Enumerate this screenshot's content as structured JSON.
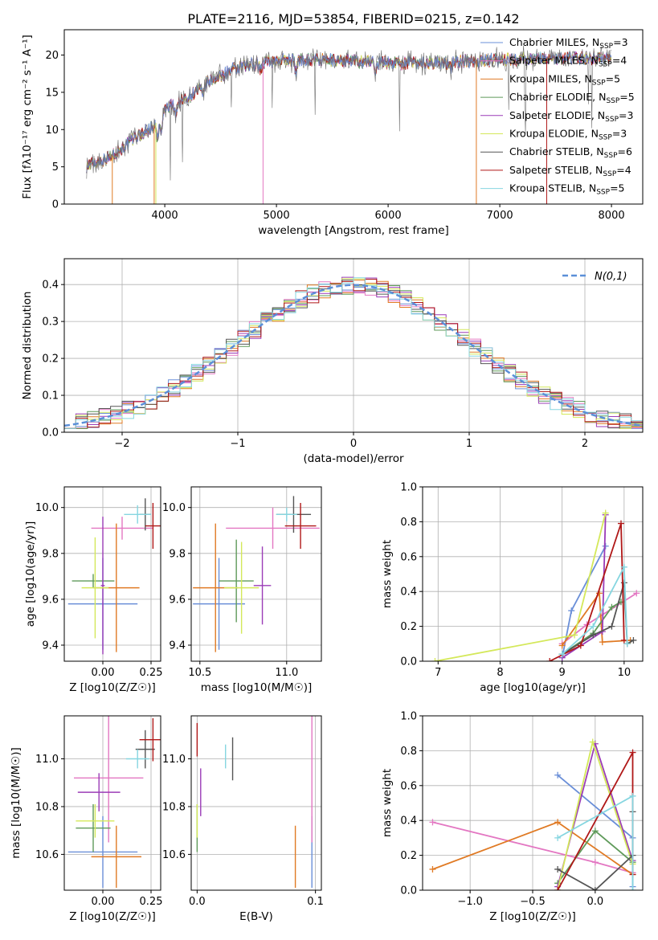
{
  "figure": {
    "title": "PLATE=2116, MJD=53854, FIBERID=0215, z=0.142"
  },
  "legend_models": [
    {
      "label": "Chabrier MILES, N",
      "sub": "SSP",
      "tail": "=3",
      "color": "#6a8fd8"
    },
    {
      "label": "Salpeter MILES, N",
      "sub": "SSP",
      "tail": "=4",
      "color": "#e377c2"
    },
    {
      "label": "Kroupa MILES, N",
      "sub": "SSP",
      "tail": "=5",
      "color": "#e07a24"
    },
    {
      "label": "Chabrier ELODIE, N",
      "sub": "SSP",
      "tail": "=5",
      "color": "#5f9a5a"
    },
    {
      "label": "Salpeter ELODIE, N",
      "sub": "SSP",
      "tail": "=3",
      "color": "#9b3cb7"
    },
    {
      "label": "Kroupa ELODIE, N",
      "sub": "SSP",
      "tail": "=3",
      "color": "#d4e85a"
    },
    {
      "label": "Chabrier STELIB, N",
      "sub": "SSP",
      "tail": "=6",
      "color": "#555555"
    },
    {
      "label": "Salpeter STELIB, N",
      "sub": "SSP",
      "tail": "=4",
      "color": "#b01818"
    },
    {
      "label": "Kroupa STELIB, N",
      "sub": "SSP",
      "tail": "=5",
      "color": "#86d6e0"
    }
  ],
  "chart_data": [
    {
      "id": "spectrum",
      "type": "line",
      "xlabel": "wavelength [Angstrom, rest frame]",
      "ylabel": "Flux [fλ10⁻¹⁷ erg cm⁻² s⁻¹ A⁻¹]",
      "xlim": [
        3100,
        8280
      ],
      "ylim": [
        0,
        23.4
      ],
      "xticks": [
        4000,
        5000,
        6000,
        7000,
        8000
      ],
      "yticks": [
        0,
        5,
        10,
        15,
        20
      ],
      "continuum": {
        "x": [
          3300,
          3500,
          3700,
          3900,
          3950,
          4000,
          4200,
          4400,
          4600,
          4800,
          5000,
          5200,
          5500,
          6000,
          6500,
          7000,
          7500,
          8000
        ],
        "y": [
          5.2,
          6.2,
          8.5,
          10.5,
          11.5,
          12.8,
          14.2,
          16.5,
          18.0,
          18.8,
          19.3,
          19.4,
          19.3,
          19.0,
          19.0,
          19.4,
          19.6,
          19.6
        ]
      },
      "xrange": [
        3300,
        8000
      ]
    },
    {
      "id": "residuals",
      "type": "line",
      "xlabel": "(data-model)/error",
      "ylabel": "Normed distribution",
      "legend": "N(0,1)",
      "xlim": [
        -2.5,
        2.5
      ],
      "ylim": [
        0,
        0.47
      ],
      "xticks": [
        -2,
        -1,
        0,
        1,
        2
      ],
      "yticks": [
        0.0,
        0.1,
        0.2,
        0.3,
        0.4
      ]
    },
    {
      "id": "age_vs_Z",
      "type": "scatter",
      "xlabel": "Z [log10(Z/Z☉)]",
      "ylabel": "age  [log10(age/yr)]",
      "xlim": [
        -0.2,
        0.3
      ],
      "ylim": [
        9.33,
        10.09
      ],
      "xticks": [
        0.0,
        0.25
      ],
      "yticks": [
        9.4,
        9.6,
        9.8,
        10.0
      ],
      "points": [
        {
          "x": 0.0,
          "y": 9.58,
          "xerr": 0.18,
          "yerr": 0.2
        },
        {
          "x": 0.1,
          "y": 9.91,
          "xerr": 0.16,
          "yerr": 0.05
        },
        {
          "x": 0.07,
          "y": 9.65,
          "xerr": 0.12,
          "yerr": 0.28
        },
        {
          "x": -0.05,
          "y": 9.68,
          "xerr": 0.11,
          "yerr": 0.03
        },
        {
          "x": 0.0,
          "y": 9.66,
          "xerr": 0.01,
          "yerr": 0.3
        },
        {
          "x": -0.04,
          "y": 9.65,
          "xerr": 0.07,
          "yerr": 0.22
        },
        {
          "x": 0.22,
          "y": 9.97,
          "xerr": 0.03,
          "yerr": 0.07
        },
        {
          "x": 0.26,
          "y": 9.92,
          "xerr": 0.04,
          "yerr": 0.1
        },
        {
          "x": 0.18,
          "y": 9.97,
          "xerr": 0.07,
          "yerr": 0.04
        }
      ]
    },
    {
      "id": "age_vs_mass",
      "type": "scatter",
      "xlabel": "mass [log10(M/M☉)]",
      "ylabel": "",
      "xlim": [
        10.45,
        11.2
      ],
      "ylim": [
        9.33,
        10.09
      ],
      "xticks": [
        10.5,
        11.0
      ],
      "yticks": [
        9.4,
        9.6,
        9.8,
        10.0
      ],
      "points": [
        {
          "x": 10.61,
          "y": 9.58,
          "xerr": 0.15,
          "yerr": 0.2
        },
        {
          "x": 10.92,
          "y": 9.91,
          "xerr": 0.27,
          "yerr": 0.09
        },
        {
          "x": 10.59,
          "y": 9.65,
          "xerr": 0.13,
          "yerr": 0.28
        },
        {
          "x": 10.71,
          "y": 9.68,
          "xerr": 0.1,
          "yerr": 0.18
        },
        {
          "x": 10.86,
          "y": 9.66,
          "xerr": 0.05,
          "yerr": 0.17
        },
        {
          "x": 10.74,
          "y": 9.65,
          "xerr": 0.1,
          "yerr": 0.2
        },
        {
          "x": 11.04,
          "y": 9.97,
          "xerr": 0.1,
          "yerr": 0.08
        },
        {
          "x": 11.08,
          "y": 9.92,
          "xerr": 0.09,
          "yerr": 0.1
        },
        {
          "x": 11.0,
          "y": 9.97,
          "xerr": 0.06,
          "yerr": 0.03
        }
      ]
    },
    {
      "id": "weight_vs_age",
      "type": "line",
      "xlabel": "age  [log10(age/yr)]",
      "ylabel": "mass weight",
      "xlim": [
        6.75,
        10.3
      ],
      "ylim": [
        0,
        1.0
      ],
      "xticks": [
        7,
        8,
        9,
        10
      ],
      "yticks": [
        0.0,
        0.2,
        0.4,
        0.6,
        0.8,
        1.0
      ],
      "series": [
        {
          "x": [
            9.0,
            9.15,
            9.7
          ],
          "y": [
            0.02,
            0.29,
            0.66
          ]
        },
        {
          "x": [
            9.0,
            9.4,
            10.2
          ],
          "y": [
            0.1,
            0.21,
            0.39
          ]
        },
        {
          "x": [
            9.0,
            9.6,
            9.65,
            10.1
          ],
          "y": [
            0.09,
            0.39,
            0.11,
            0.12
          ]
        },
        {
          "x": [
            9.0,
            9.5,
            9.8,
            9.95
          ],
          "y": [
            0.04,
            0.16,
            0.31,
            0.34
          ]
        },
        {
          "x": [
            9.0,
            9.65,
            9.7
          ],
          "y": [
            0.02,
            0.17,
            0.84
          ]
        },
        {
          "x": [
            6.95,
            9.2,
            9.7
          ],
          "y": [
            0.0,
            0.15,
            0.85
          ]
        },
        {
          "x": [
            9.0,
            9.5,
            9.8,
            10.0,
            10.05,
            10.15
          ],
          "y": [
            0.04,
            0.15,
            0.2,
            0.45,
            0.1,
            0.12
          ]
        },
        {
          "x": [
            8.8,
            9.3,
            9.95,
            10.0
          ],
          "y": [
            0.0,
            0.09,
            0.79,
            0.12
          ]
        },
        {
          "x": [
            9.0,
            9.5,
            10.0,
            10.05
          ],
          "y": [
            0.04,
            0.2,
            0.54,
            0.1
          ]
        }
      ]
    },
    {
      "id": "mass_vs_Z",
      "type": "scatter",
      "xlabel": "Z [log10(Z/Z☉)]",
      "ylabel": "mass [log10(M/M☉)]",
      "xlim": [
        -0.2,
        0.3
      ],
      "ylim": [
        10.45,
        11.18
      ],
      "xticks": [
        0.0,
        0.25
      ],
      "yticks": [
        10.6,
        10.8,
        11.0
      ],
      "points": [
        {
          "x": 0.0,
          "y": 10.61,
          "xerr": 0.18,
          "yerr": 0.15
        },
        {
          "x": 0.03,
          "y": 10.92,
          "xerr": 0.18,
          "yerr": 0.27
        },
        {
          "x": 0.07,
          "y": 10.59,
          "xerr": 0.13,
          "yerr": 0.13
        },
        {
          "x": -0.05,
          "y": 10.71,
          "xerr": 0.09,
          "yerr": 0.1
        },
        {
          "x": -0.02,
          "y": 10.86,
          "xerr": 0.11,
          "yerr": 0.08
        },
        {
          "x": -0.04,
          "y": 10.74,
          "xerr": 0.1,
          "yerr": 0.07
        },
        {
          "x": 0.22,
          "y": 11.04,
          "xerr": 0.05,
          "yerr": 0.08
        },
        {
          "x": 0.26,
          "y": 11.08,
          "xerr": 0.07,
          "yerr": 0.09
        },
        {
          "x": 0.18,
          "y": 11.0,
          "xerr": 0.06,
          "yerr": 0.04
        }
      ]
    },
    {
      "id": "mass_vs_ebv",
      "type": "scatter",
      "xlabel": "E(B-V)",
      "ylabel": "",
      "xlim": [
        -0.005,
        0.105
      ],
      "ylim": [
        10.45,
        11.18
      ],
      "xticks": [
        0.0,
        0.1
      ],
      "yticks": [
        10.6,
        10.8,
        11.0
      ],
      "points": [
        {
          "x": 0.097,
          "y": 10.61,
          "yerr": 0.15
        },
        {
          "x": 0.097,
          "y": 10.92,
          "yerr": 0.27
        },
        {
          "x": 0.083,
          "y": 10.59,
          "yerr": 0.13
        },
        {
          "x": 0.0,
          "y": 10.71,
          "yerr": 0.1
        },
        {
          "x": 0.003,
          "y": 10.86,
          "yerr": 0.1
        },
        {
          "x": 0.0,
          "y": 10.74,
          "yerr": 0.07
        },
        {
          "x": 0.03,
          "y": 11.0,
          "yerr": 0.09
        },
        {
          "x": 0.0,
          "y": 11.08,
          "yerr": 0.07
        },
        {
          "x": 0.024,
          "y": 11.01,
          "yerr": 0.05
        }
      ]
    },
    {
      "id": "weight_vs_Z",
      "type": "line",
      "xlabel": "Z [log10(Z/Z☉)]",
      "ylabel": "mass weight",
      "xlim": [
        -1.38,
        0.38
      ],
      "ylim": [
        0,
        1.0
      ],
      "xticks": [
        -1.0,
        -0.5,
        0.0
      ],
      "yticks": [
        0.0,
        0.2,
        0.4,
        0.6,
        0.8,
        1.0
      ],
      "series": [
        {
          "x": [
            -0.3,
            0.3,
            0.3
          ],
          "y": [
            0.66,
            0.3,
            0.02
          ]
        },
        {
          "x": [
            -1.3,
            0.0,
            0.3
          ],
          "y": [
            0.39,
            0.16,
            0.1
          ]
        },
        {
          "x": [
            -1.3,
            -0.3,
            0.3
          ],
          "y": [
            0.12,
            0.39,
            0.09
          ]
        },
        {
          "x": [
            -0.3,
            0.0,
            0.3
          ],
          "y": [
            0.04,
            0.34,
            0.16
          ]
        },
        {
          "x": [
            -0.3,
            0.0,
            0.3
          ],
          "y": [
            0.02,
            0.84,
            0.17
          ]
        },
        {
          "x": [
            -0.3,
            -0.02,
            0.3
          ],
          "y": [
            0.0,
            0.85,
            0.15
          ]
        },
        {
          "x": [
            -0.3,
            0.0,
            0.3,
            0.3
          ],
          "y": [
            0.12,
            0.0,
            0.2,
            0.45
          ]
        },
        {
          "x": [
            -0.3,
            0.3,
            0.3
          ],
          "y": [
            0.0,
            0.79,
            0.09
          ]
        },
        {
          "x": [
            -0.3,
            0.3,
            0.3
          ],
          "y": [
            0.3,
            0.54,
            0.0
          ]
        }
      ]
    }
  ]
}
